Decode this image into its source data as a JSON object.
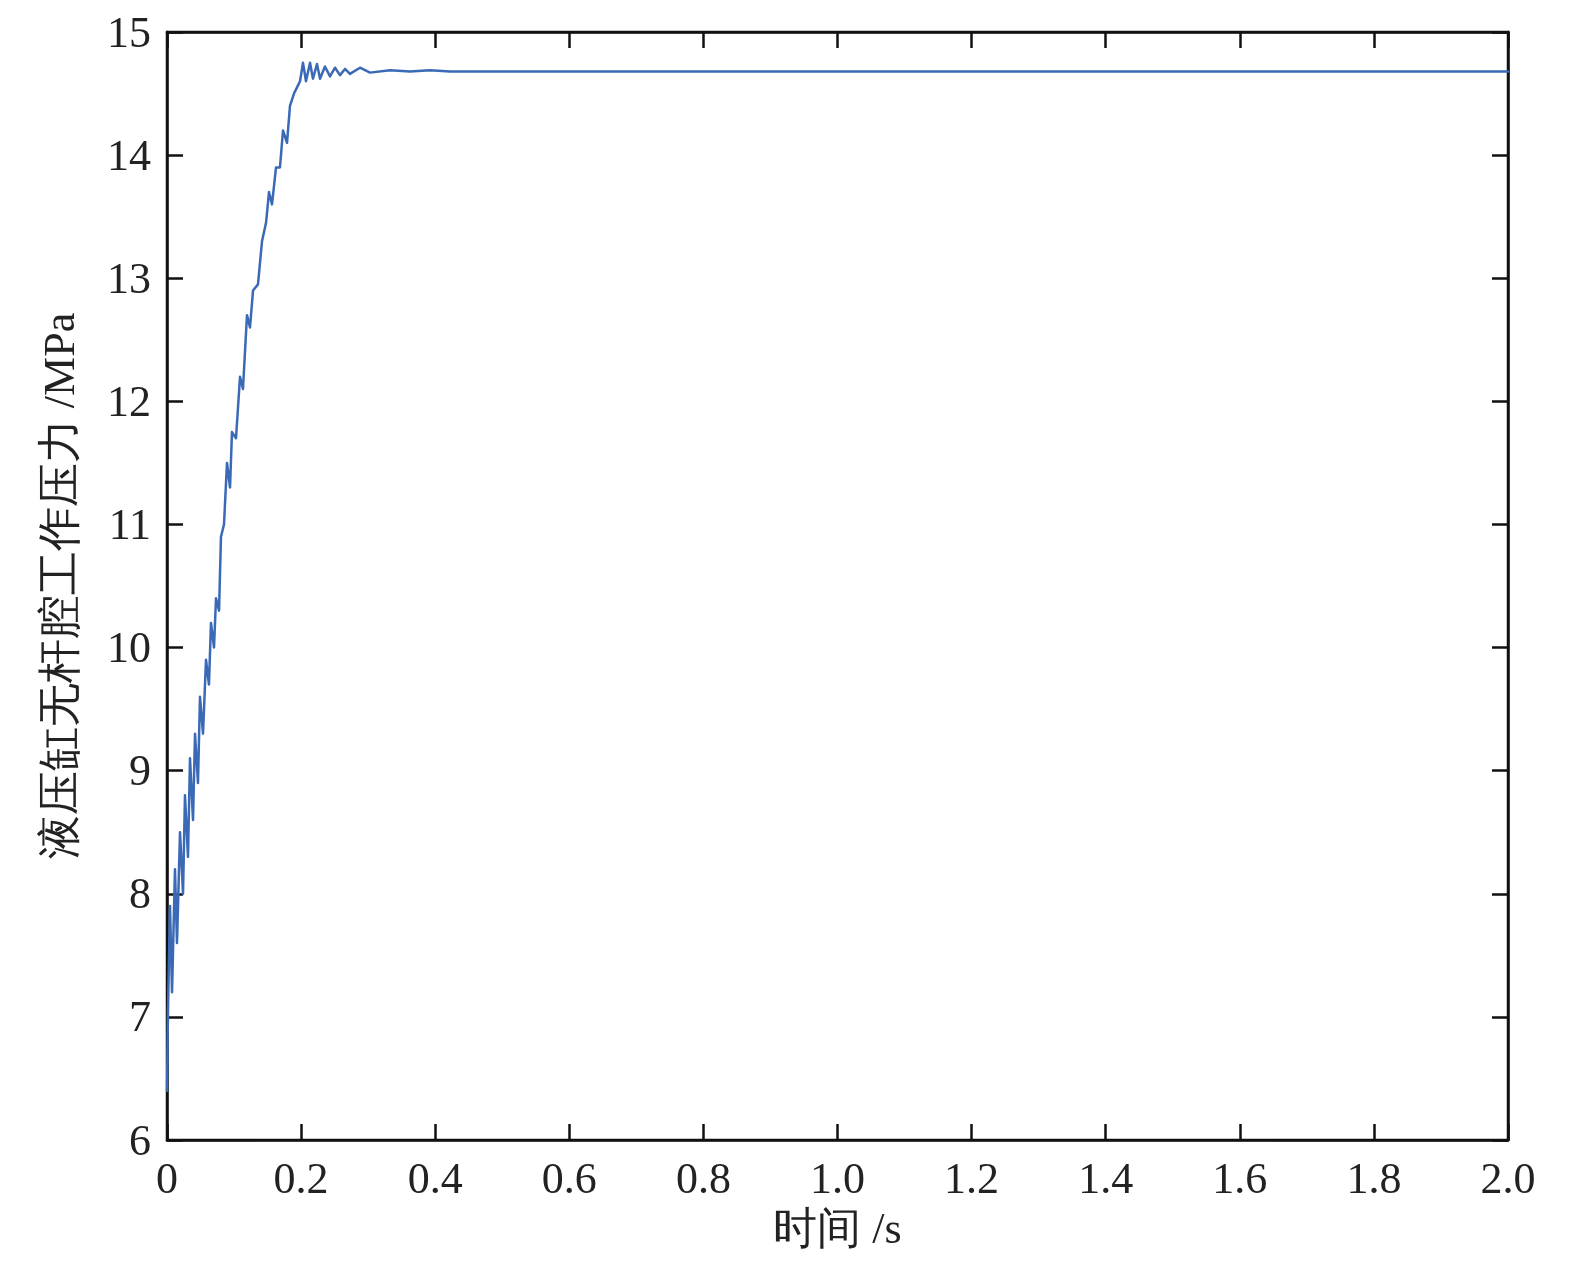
{
  "chart_data": {
    "type": "line",
    "xlabel": "时间 /s",
    "ylabel": "液压缸无杆腔工作压力 /MPa",
    "xlim": [
      0,
      2.0
    ],
    "xticks": [
      0,
      0.2,
      0.4,
      0.6,
      0.8,
      {
        "value": 1.0,
        "label": "1.0"
      },
      1.2,
      1.4,
      1.6,
      1.8,
      {
        "value": 2.0,
        "label": "2.0"
      }
    ],
    "ylim": [
      6,
      15
    ],
    "yticks": [
      6,
      7,
      8,
      9,
      10,
      11,
      12,
      13,
      14,
      15
    ],
    "grid": false,
    "marker": "none",
    "line_style": "solid",
    "series": [
      {
        "color": "#3a6ab6",
        "x": [
          0,
          0.0015,
          0.0045,
          0.0075,
          0.0119,
          0.0149,
          0.0194,
          0.0239,
          0.0268,
          0.0313,
          0.0343,
          0.0388,
          0.0418,
          0.0462,
          0.0492,
          0.0537,
          0.0582,
          0.0626,
          0.0656,
          0.0701,
          0.0731,
          0.0776,
          0.0805,
          0.085,
          0.0895,
          0.094,
          0.0969,
          0.1029,
          0.1089,
          0.1133,
          0.1193,
          0.1238,
          0.1283,
          0.1357,
          0.1417,
          0.1477,
          0.1521,
          0.1566,
          0.1626,
          0.1685,
          0.173,
          0.179,
          0.1834,
          0.1894,
          0.1939,
          0.1984,
          0.2028,
          0.2073,
          0.2133,
          0.2177,
          0.2237,
          0.2282,
          0.2356,
          0.2431,
          0.2506,
          0.258,
          0.2655,
          0.2729,
          0.2878,
          0.3028,
          0.3326,
          0.3624,
          0.3923,
          0.4221,
          2.0
        ],
        "values": [
          6.4,
          7.06,
          7.9,
          7.2,
          8.2,
          7.6,
          8.5,
          8.0,
          8.8,
          8.3,
          9.1,
          8.6,
          9.3,
          8.9,
          9.6,
          9.3,
          9.9,
          9.7,
          10.2,
          10.0,
          10.4,
          10.3,
          10.9,
          11.0,
          11.5,
          11.3,
          11.75,
          11.7,
          12.2,
          12.1,
          12.7,
          12.6,
          12.9,
          12.95,
          13.3,
          13.45,
          13.7,
          13.6,
          13.9,
          13.9,
          14.2,
          14.1,
          14.4,
          14.5,
          14.55,
          14.6,
          14.75,
          14.6,
          14.75,
          14.62,
          14.74,
          14.62,
          14.72,
          14.64,
          14.71,
          14.65,
          14.7,
          14.66,
          14.71,
          14.67,
          14.69,
          14.68,
          14.69,
          14.68,
          14.68
        ]
      }
    ]
  }
}
